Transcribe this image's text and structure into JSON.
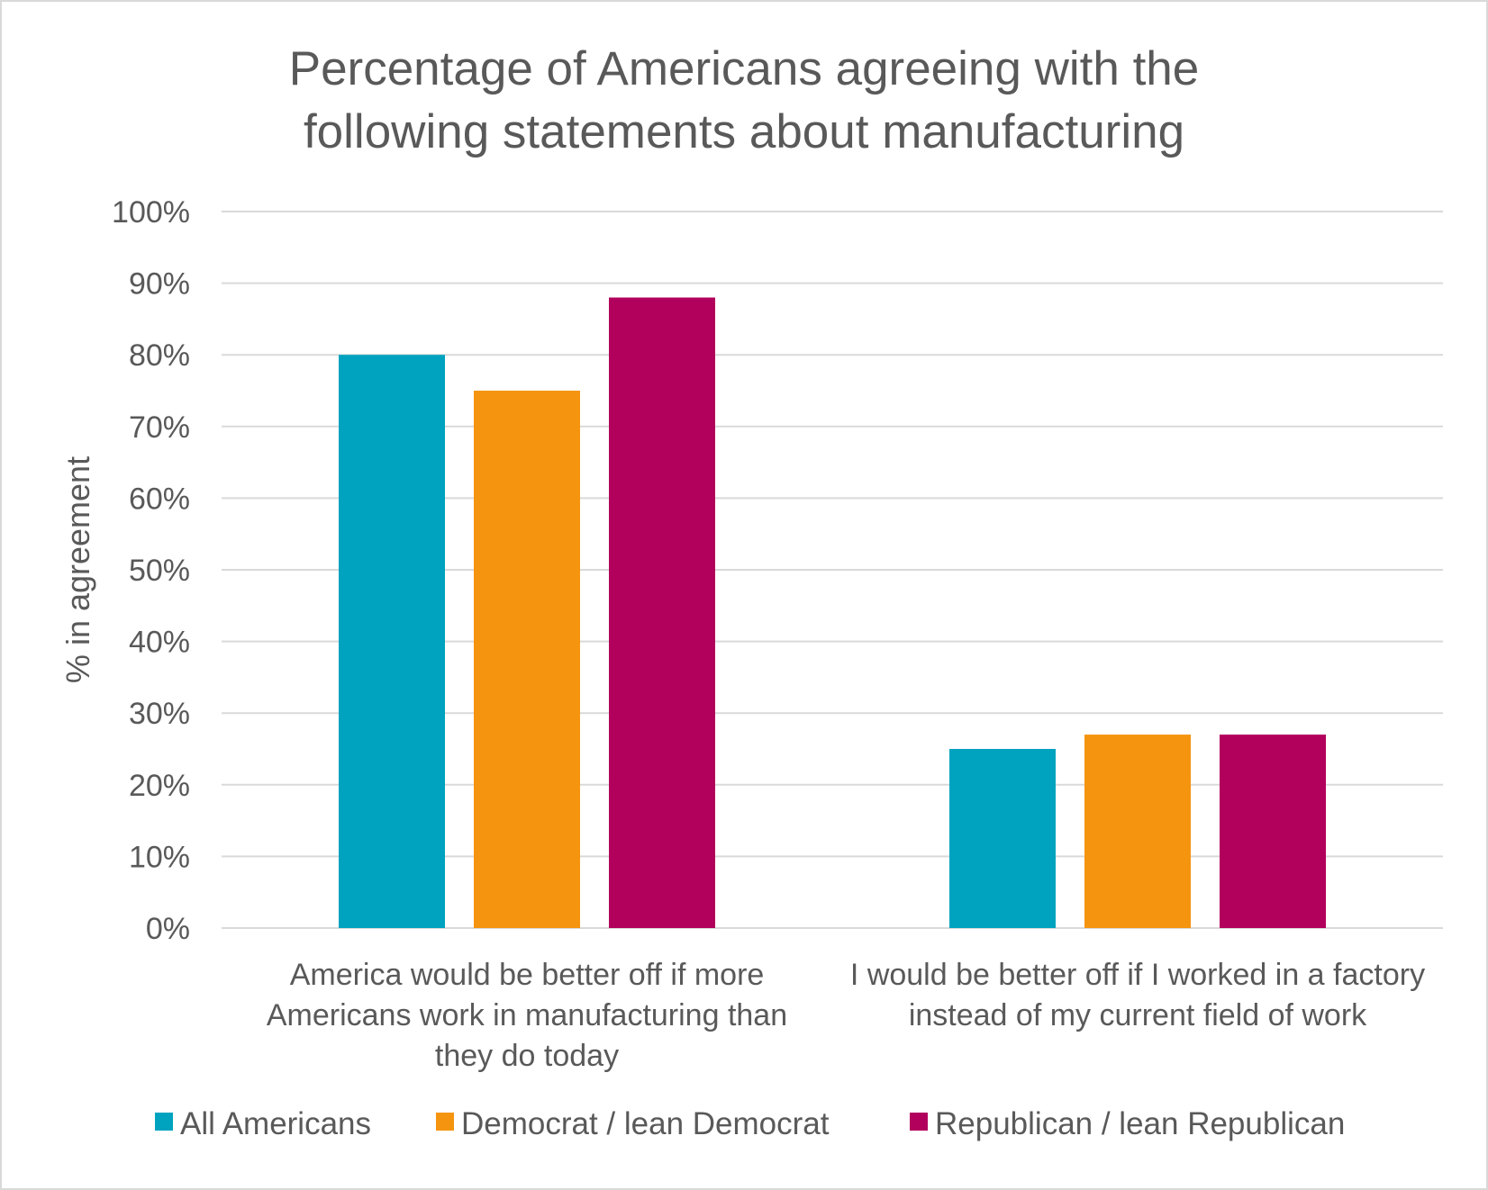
{
  "chart_data": {
    "type": "bar",
    "title": [
      "Percentage of Americans agreeing with the",
      "following statements about manufacturing"
    ],
    "ylabel": "% in agreement",
    "xlabel": "",
    "ylim": [
      0,
      100
    ],
    "yticks": [
      "0%",
      "10%",
      "20%",
      "30%",
      "40%",
      "50%",
      "60%",
      "70%",
      "80%",
      "90%",
      "100%"
    ],
    "categories": [
      [
        "America would be better off if more",
        "Americans work in manufacturing than",
        "they do today"
      ],
      [
        "I would be better off if I worked in a factory",
        "instead of my current field of work"
      ]
    ],
    "series": [
      {
        "name": "All Americans",
        "color": "#00a3bf",
        "values": [
          80,
          25
        ]
      },
      {
        "name": "Democrat / lean Democrat",
        "color": "#f5940f",
        "values": [
          75,
          27
        ]
      },
      {
        "name": "Republican / lean Republican",
        "color": "#b2005d",
        "values": [
          88,
          27
        ]
      }
    ],
    "grid": true,
    "legend_position": "bottom"
  }
}
